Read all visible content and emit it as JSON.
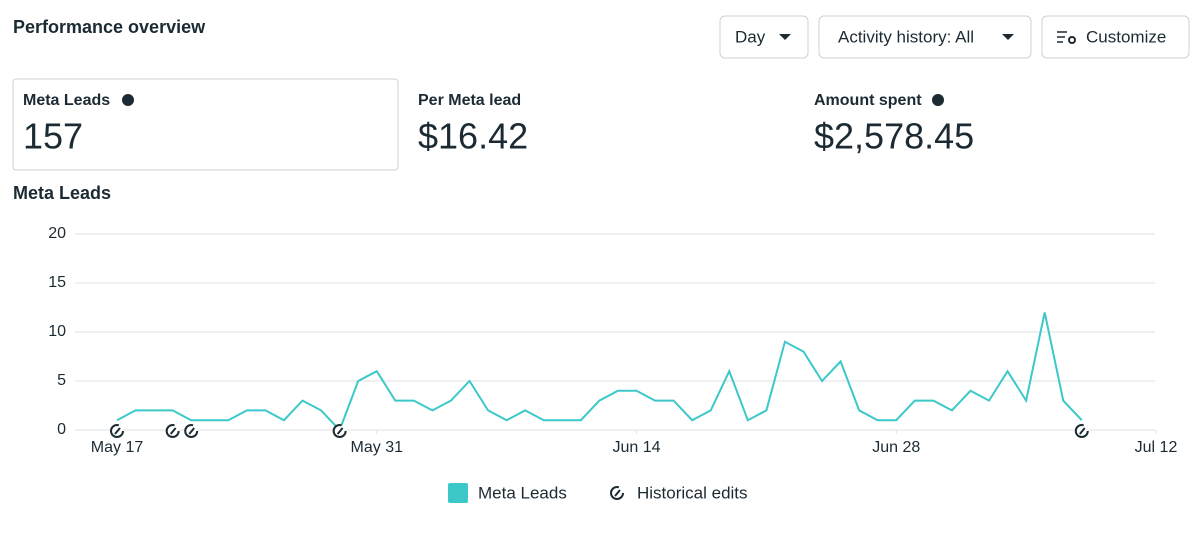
{
  "header": {
    "title": "Performance overview"
  },
  "controls": [
    "Day",
    "Activity history: All",
    "Customize"
  ],
  "metrics": [
    {
      "label": "Meta Leads",
      "value": "157"
    },
    {
      "label": "Per Meta lead",
      "value": "$16.42"
    },
    {
      "label": "Amount spent",
      "value": "$2,578.45"
    }
  ],
  "chart": {
    "type": "line",
    "title": "Meta Leads",
    "x": [
      0,
      1,
      2,
      3,
      4,
      5,
      6,
      7,
      8,
      9,
      10,
      11,
      12,
      13,
      14,
      15,
      16,
      17,
      18,
      19,
      20,
      21,
      22,
      23,
      24,
      25,
      26,
      27,
      28,
      29,
      30,
      31,
      32,
      33,
      34,
      35,
      36,
      37,
      38,
      39,
      40,
      41,
      42,
      43,
      44,
      45,
      46,
      47,
      48,
      49,
      50,
      51,
      52
    ],
    "series": [
      {
        "name": "Meta Leads",
        "color": "#3cc8c8",
        "values": [
          1,
          2,
          2,
          2,
          1,
          1,
          1,
          2,
          2,
          1,
          3,
          2,
          0,
          5,
          6,
          3,
          3,
          2,
          3,
          5,
          2,
          1,
          2,
          1,
          1,
          1,
          3,
          4,
          4,
          3,
          3,
          1,
          2,
          6,
          1,
          2,
          9,
          8,
          5,
          7,
          2,
          1,
          1,
          3,
          3,
          2,
          4,
          3,
          6,
          3,
          12,
          3,
          1
        ]
      }
    ],
    "annotations": {
      "name": "Historical edits",
      "x": [
        0,
        3,
        4,
        12,
        52
      ]
    },
    "xlim": [
      0,
      56
    ],
    "xticks": [
      {
        "value": 0,
        "label": "May 17"
      },
      {
        "value": 14,
        "label": "May 31"
      },
      {
        "value": 28,
        "label": "Jun 14"
      },
      {
        "value": 42,
        "label": "Jun 28"
      },
      {
        "value": 56,
        "label": "Jul 12"
      }
    ],
    "ylim": [
      0,
      20
    ],
    "yticks": [
      0,
      5,
      10,
      15,
      20
    ],
    "grid": true
  }
}
